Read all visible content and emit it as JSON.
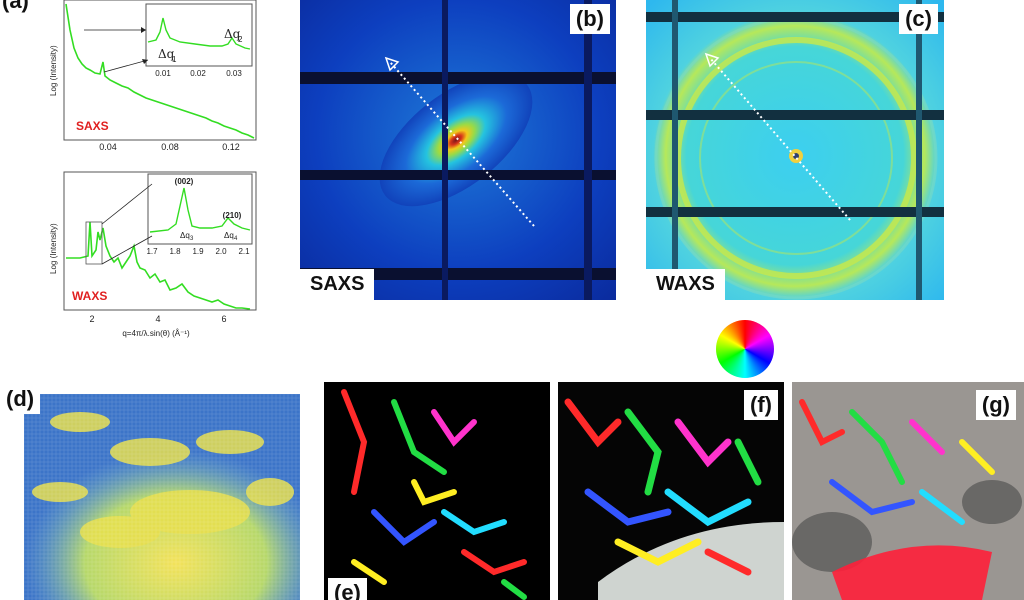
{
  "panels": {
    "a": "(a)",
    "b": "(b)",
    "c": "(c)",
    "d": "(d)",
    "e": "(e)",
    "f": "(f)",
    "g": "(g)"
  },
  "saxs_plot": {
    "ylabel": "Log (Intensity)",
    "name": "SAXS",
    "x_ticks": [
      "0.04",
      "0.08",
      "0.12"
    ],
    "inset": {
      "x_ticks": [
        "0.01",
        "0.02",
        "0.03"
      ],
      "peak1": "Δq",
      "peak1_sub": "1",
      "peak2": "Δq",
      "peak2_sub": "2"
    }
  },
  "waxs_plot": {
    "ylabel": "Log (Intensity)",
    "name": "WAXS",
    "x_ticks": [
      "2",
      "4",
      "6"
    ],
    "xlabel": "q=4π/λ.sin(θ) (Å⁻¹)",
    "inset": {
      "x_ticks": [
        "1.7",
        "1.8",
        "1.9",
        "2.0",
        "2.1"
      ],
      "peak_002": "(002)",
      "peak_210": "(210)",
      "q3": "Δq",
      "q3_sub": "3",
      "q4": "Δq",
      "q4_sub": "4"
    }
  },
  "saxs_image_label": "SAXS",
  "waxs_image_label": "WAXS",
  "colors": {
    "curve": "#33dd22",
    "red_label": "#e02020",
    "detector_bg": "#0a2aa8",
    "waxs_bg": "#35c8f0"
  }
}
